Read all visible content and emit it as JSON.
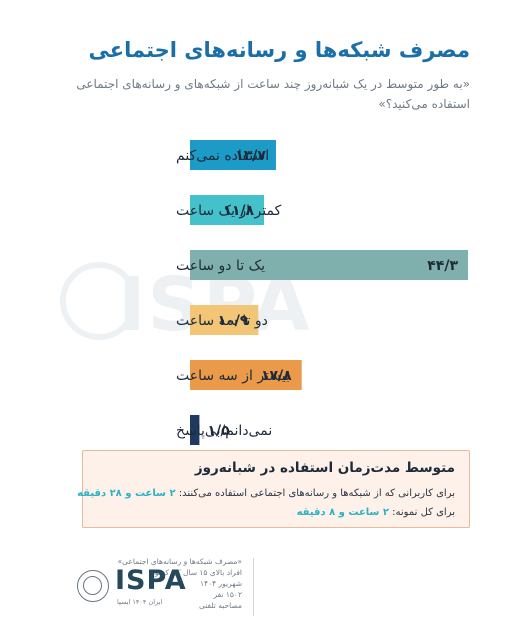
{
  "title": "مصرف شبکه‌ها و رسانه‌های اجتماعی",
  "subtitle": "«به طور متوسط در یک شبانه‌روز چند ساعت از شبکه‌های و رسانه‌های اجتماعی استفاده می‌کنید؟»",
  "chart_data": {
    "type": "bar",
    "orientation": "horizontal",
    "categories": [
      "استفاده نمی‌کنم",
      "کمتر از یک ساعت",
      "یک تا دو ساعت",
      "دو تا سه ساعت",
      "بیشتر از سه ساعت",
      "نمی‌دانم/بی‌پاسخ"
    ],
    "values": [
      13.7,
      11.8,
      44.3,
      10.9,
      17.8,
      1.5
    ],
    "value_labels": [
      "۱۳/۷",
      "۱۱/۸",
      "۴۴/۳",
      "۱۰/۹",
      "۱۷/۸",
      "۱/۵"
    ],
    "colors": [
      "#1b9bc6",
      "#45c1cc",
      "#7fb0ad",
      "#f2c577",
      "#ea9a48",
      "#1e3a60"
    ],
    "xlim": [
      0,
      44.3
    ],
    "grid": false,
    "legend": "none"
  },
  "summary": {
    "title": "متوسط مدت‌زمان استفاده در شبانه‌روز",
    "line1_text": "برای کاربرانی که از شبکه‌ها و رسانه‌های اجتماعی استفاده می‌کنند: ",
    "line1_value": "۲ ساعت و ۲۸ دقیقه",
    "line2_text": "برای کل نمونه: ",
    "line2_value": "۲ ساعت و ۸ دقیقه"
  },
  "footer": {
    "lines": [
      "«مصرف شبکه‌ها و رسانه‌های اجتماعی»",
      "افراد بالای ۱۵ سال کل کشور",
      "شهریور ۱۴۰۴",
      "۱۵۰۲ نفر",
      "مصاحبه تلفنی"
    ]
  },
  "logo": {
    "name": "ISPA",
    "tagline": "ایران ۱۴۰۴ ایسپا",
    "colors": {
      "text": "#25485a"
    }
  },
  "watermark": "ISPA"
}
